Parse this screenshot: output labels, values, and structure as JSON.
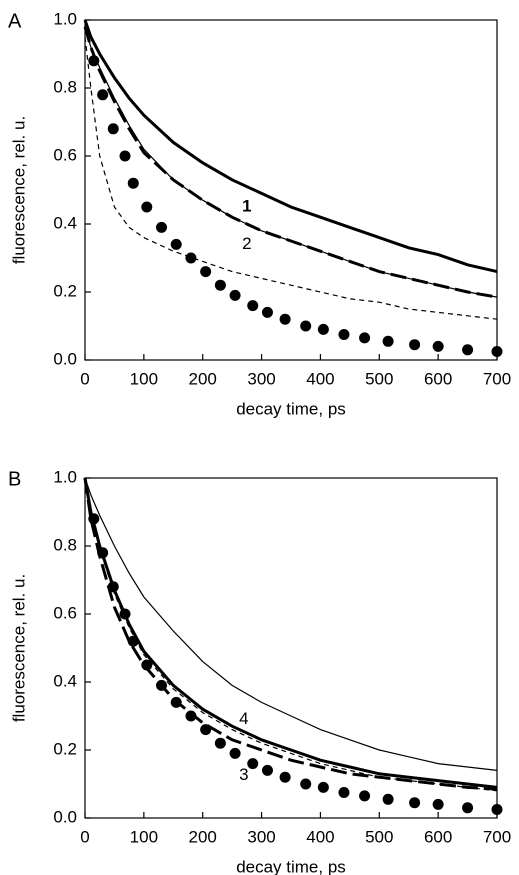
{
  "chart_data": [
    {
      "type": "line",
      "panel": "A",
      "xlabel": "decay time, ps",
      "ylabel": "fluorescence, rel. u.",
      "xlim": [
        0,
        700
      ],
      "ylim": [
        0,
        1
      ],
      "xticks": [
        0,
        100,
        200,
        300,
        400,
        500,
        600,
        700
      ],
      "yticks": [
        {
          "value": 0,
          "label": "0.0"
        },
        0.2,
        0.4,
        0.6,
        0.8,
        {
          "value": 1,
          "label": "1.0"
        }
      ],
      "x": [
        0,
        10,
        25,
        50,
        75,
        100,
        150,
        200,
        250,
        300,
        350,
        400,
        450,
        500,
        550,
        600,
        650,
        700
      ],
      "series": [
        {
          "style": "thick-solid",
          "color": "#000000",
          "values": [
            1.0,
            0.95,
            0.9,
            0.83,
            0.77,
            0.72,
            0.64,
            0.58,
            0.53,
            0.49,
            0.45,
            0.42,
            0.39,
            0.36,
            0.33,
            0.31,
            0.28,
            0.26
          ]
        },
        {
          "style": "thin-solid",
          "color": "#000000",
          "values": [
            0.98,
            0.92,
            0.86,
            0.77,
            0.69,
            0.62,
            0.53,
            0.47,
            0.42,
            0.38,
            0.35,
            0.32,
            0.29,
            0.26,
            0.24,
            0.22,
            0.2,
            0.185
          ]
        },
        {
          "style": "thick-dashed",
          "color": "#000000",
          "values": [
            0.98,
            0.92,
            0.85,
            0.76,
            0.68,
            0.61,
            0.53,
            0.47,
            0.42,
            0.38,
            0.35,
            0.32,
            0.29,
            0.26,
            0.24,
            0.22,
            0.2,
            0.185
          ]
        },
        {
          "style": "thin-dashed",
          "color": "#000000",
          "values": [
            0.95,
            0.8,
            0.6,
            0.45,
            0.39,
            0.36,
            0.32,
            0.29,
            0.26,
            0.24,
            0.22,
            0.2,
            0.18,
            0.17,
            0.15,
            0.14,
            0.13,
            0.12
          ]
        },
        {
          "style": "dots",
          "color": "#000000",
          "x": [
            15,
            30,
            48,
            68,
            82,
            105,
            130,
            155,
            180,
            205,
            230,
            255,
            285,
            310,
            340,
            375,
            405,
            440,
            475,
            515,
            560,
            600,
            650,
            700
          ],
          "values": [
            0.88,
            0.78,
            0.68,
            0.6,
            0.52,
            0.45,
            0.39,
            0.34,
            0.3,
            0.26,
            0.22,
            0.19,
            0.16,
            0.14,
            0.12,
            0.1,
            0.09,
            0.075,
            0.065,
            0.055,
            0.045,
            0.04,
            0.03,
            0.025
          ]
        }
      ],
      "annotations": [
        {
          "text": "1",
          "x": 275,
          "y": 0.45,
          "bold": true
        },
        {
          "text": "2",
          "x": 275,
          "y": 0.34,
          "bold": false
        }
      ]
    },
    {
      "type": "line",
      "panel": "B",
      "xlabel": "decay time, ps",
      "ylabel": "fluorescence, rel. u.",
      "xlim": [
        0,
        700
      ],
      "ylim": [
        0,
        1
      ],
      "xticks": [
        0,
        100,
        200,
        300,
        400,
        500,
        600,
        700
      ],
      "yticks": [
        {
          "value": 0,
          "label": "0.0"
        },
        0.2,
        0.4,
        0.6,
        0.8,
        {
          "value": 1,
          "label": "1.0"
        }
      ],
      "x": [
        0,
        10,
        25,
        50,
        75,
        100,
        150,
        200,
        250,
        300,
        350,
        400,
        450,
        500,
        550,
        600,
        650,
        700
      ],
      "series": [
        {
          "style": "thin-solid",
          "color": "#000000",
          "values": [
            1.0,
            0.95,
            0.89,
            0.8,
            0.72,
            0.65,
            0.55,
            0.46,
            0.39,
            0.34,
            0.3,
            0.26,
            0.23,
            0.2,
            0.18,
            0.16,
            0.15,
            0.14
          ]
        },
        {
          "style": "thick-solid",
          "color": "#000000",
          "values": [
            1.0,
            0.9,
            0.8,
            0.67,
            0.57,
            0.49,
            0.39,
            0.32,
            0.27,
            0.23,
            0.2,
            0.17,
            0.15,
            0.13,
            0.12,
            0.11,
            0.1,
            0.09
          ]
        },
        {
          "style": "thin-dashed",
          "color": "#000000",
          "values": [
            0.98,
            0.89,
            0.79,
            0.66,
            0.56,
            0.48,
            0.38,
            0.31,
            0.26,
            0.22,
            0.19,
            0.16,
            0.14,
            0.12,
            0.11,
            0.1,
            0.09,
            0.08
          ]
        },
        {
          "style": "thick-dashed",
          "color": "#000000",
          "values": [
            1.0,
            0.88,
            0.77,
            0.62,
            0.52,
            0.45,
            0.35,
            0.28,
            0.23,
            0.2,
            0.17,
            0.15,
            0.13,
            0.12,
            0.11,
            0.1,
            0.09,
            0.085
          ]
        },
        {
          "style": "dots",
          "color": "#000000",
          "x": [
            15,
            30,
            48,
            68,
            82,
            105,
            130,
            155,
            180,
            205,
            230,
            255,
            285,
            310,
            340,
            375,
            405,
            440,
            475,
            515,
            560,
            600,
            650,
            700
          ],
          "values": [
            0.88,
            0.78,
            0.68,
            0.6,
            0.52,
            0.45,
            0.39,
            0.34,
            0.3,
            0.26,
            0.22,
            0.19,
            0.16,
            0.14,
            0.12,
            0.1,
            0.09,
            0.075,
            0.065,
            0.055,
            0.045,
            0.04,
            0.03,
            0.025
          ]
        }
      ],
      "annotations": [
        {
          "text": "4",
          "x": 270,
          "y": 0.29,
          "bold": false
        },
        {
          "text": "3",
          "x": 270,
          "y": 0.125,
          "bold": false
        }
      ]
    }
  ]
}
